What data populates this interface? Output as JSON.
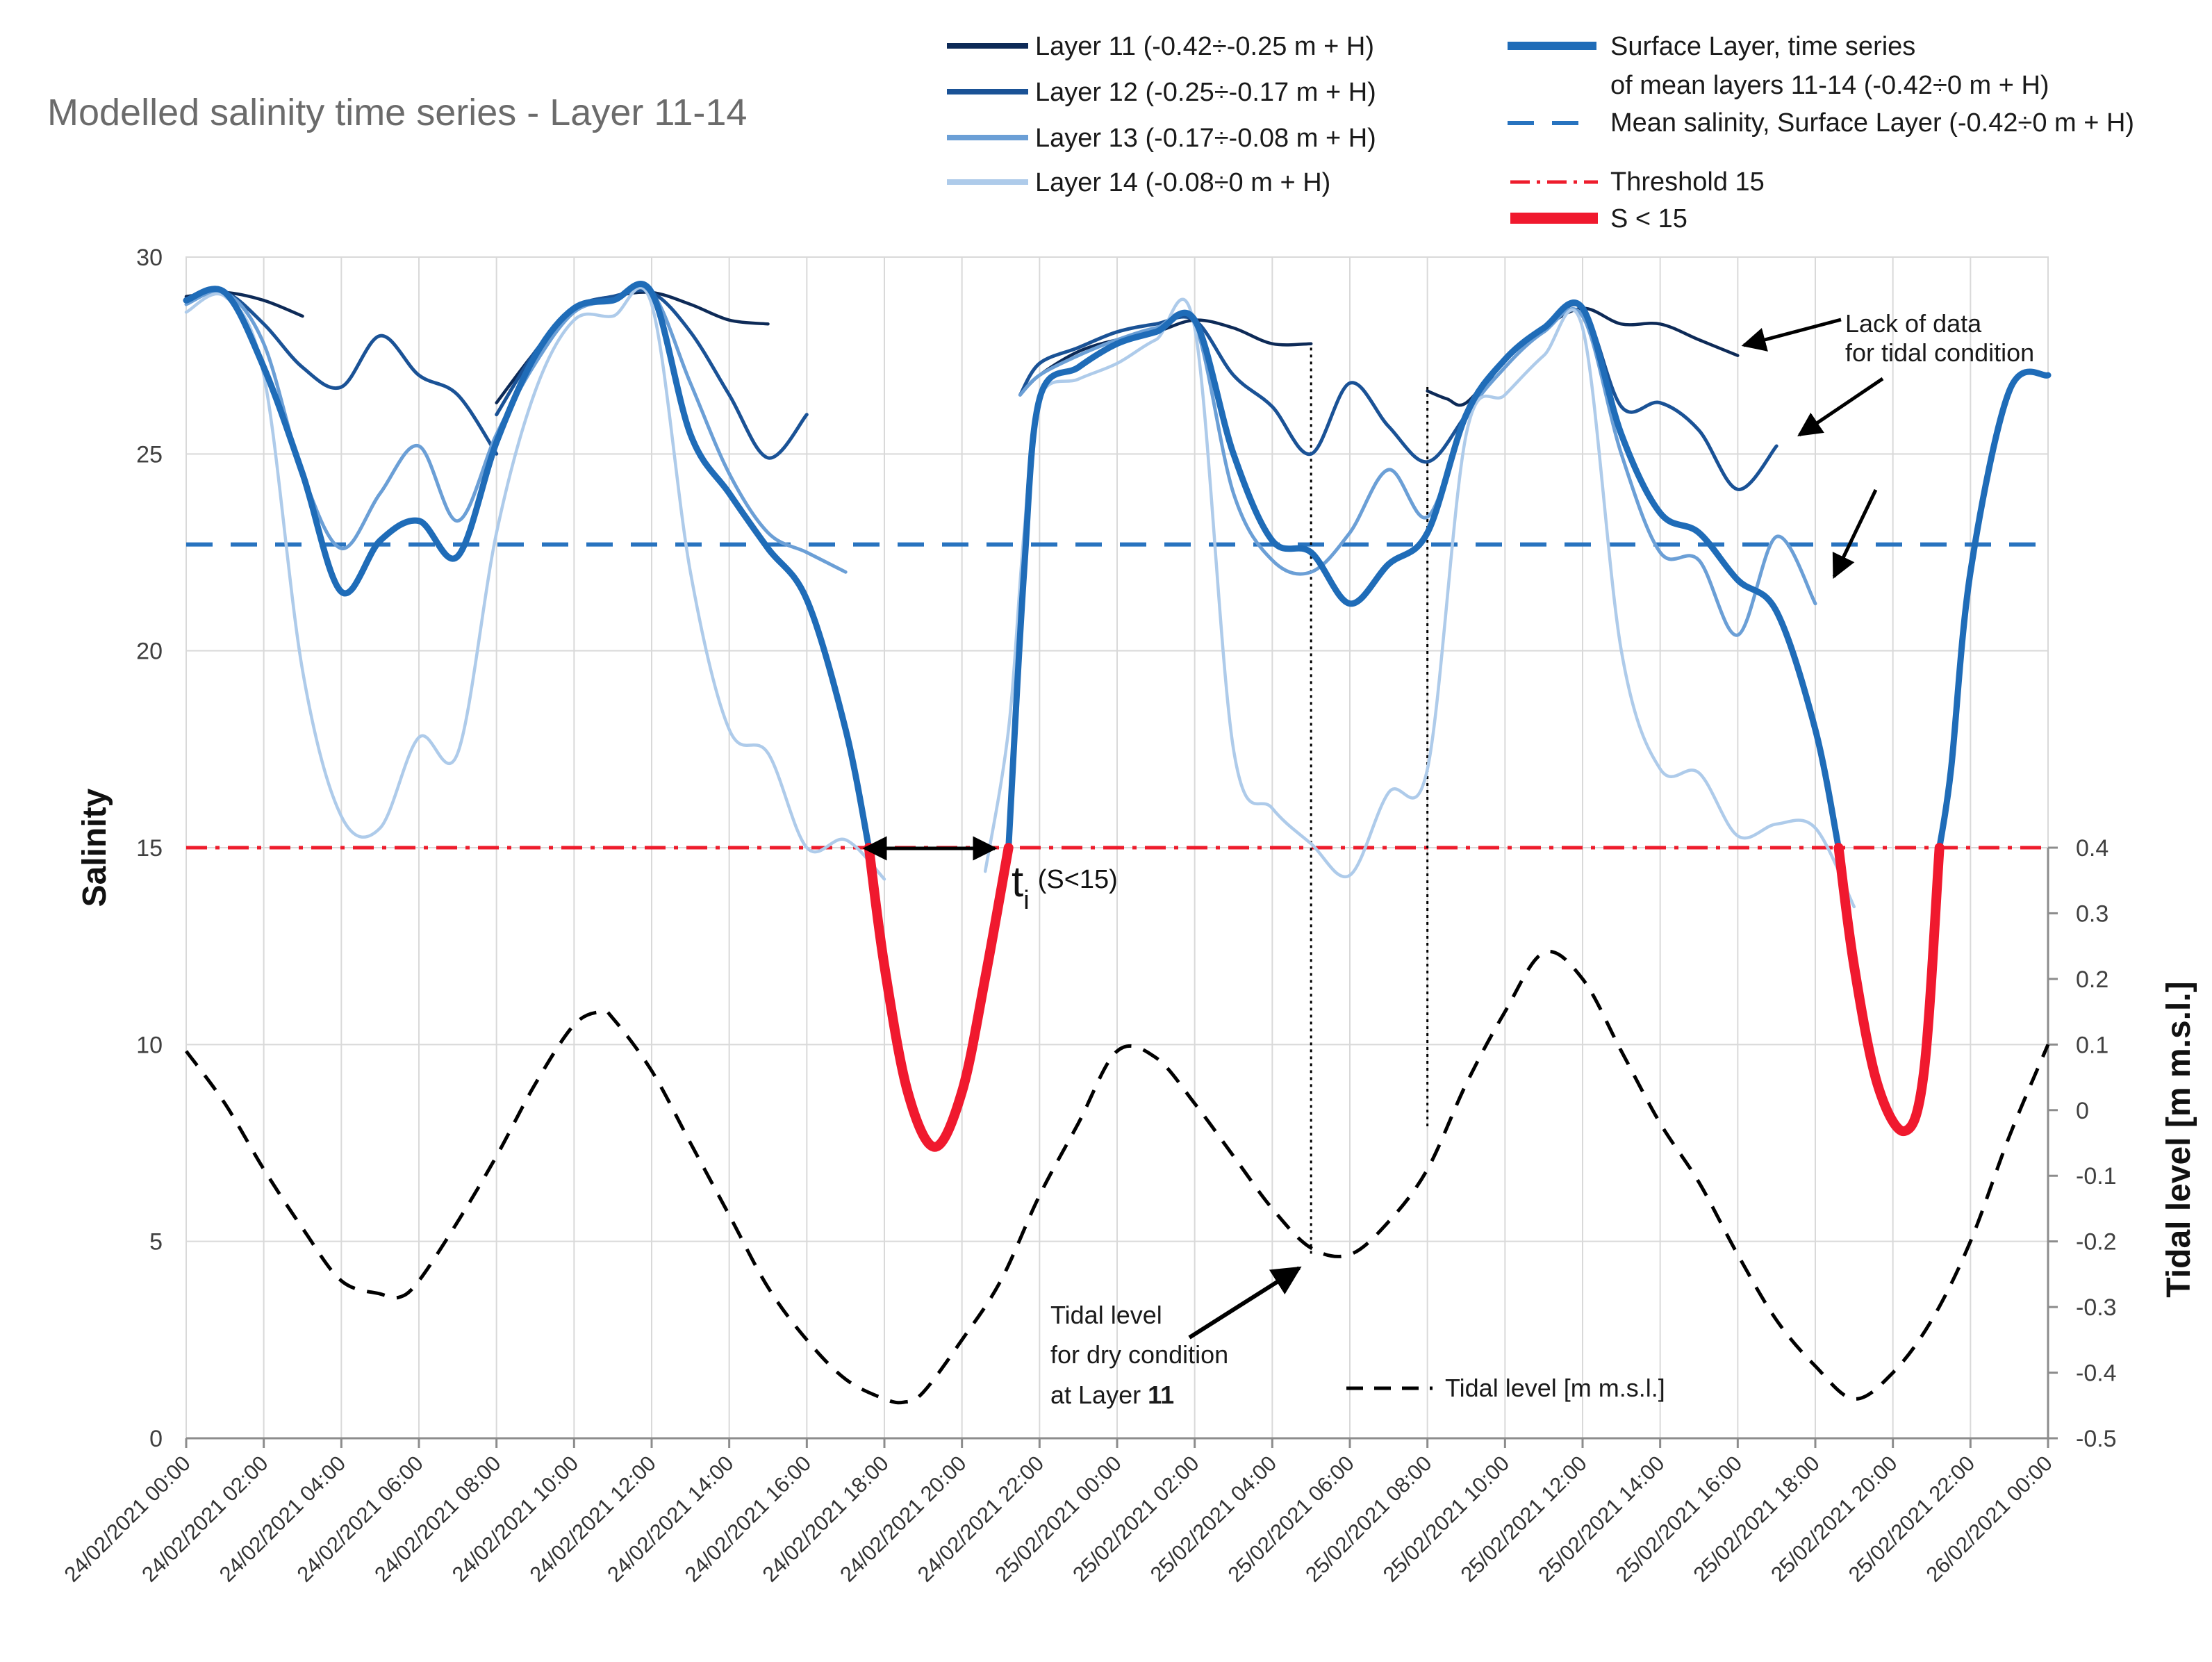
{
  "chart_data": {
    "type": "line",
    "title": "Modelled salinity time series - Layer 11-14",
    "ylabel": "Salinity",
    "y2label": "Tidal level [m m.s.l.]",
    "ylim": [
      0,
      30
    ],
    "y2lim": [
      -0.5,
      0.4
    ],
    "yticks": [
      "0",
      "5",
      "10",
      "15",
      "20",
      "25",
      "30"
    ],
    "y2ticks": [
      "-0.5",
      "-0.4",
      "-0.3",
      "-0.2",
      "-0.1",
      "0",
      "0.1",
      "0.2",
      "0.3",
      "0.4"
    ],
    "x_unit": "hours since 24/02/2021 00:00",
    "xlim": [
      0,
      48
    ],
    "xtick_labels": [
      "24/02/2021 00:00",
      "24/02/2021 02:00",
      "24/02/2021 04:00",
      "24/02/2021 06:00",
      "24/02/2021 08:00",
      "24/02/2021 10:00",
      "24/02/2021 12:00",
      "24/02/2021 14:00",
      "24/02/2021 16:00",
      "24/02/2021 18:00",
      "24/02/2021 20:00",
      "24/02/2021 22:00",
      "25/02/2021 00:00",
      "25/02/2021 02:00",
      "25/02/2021 04:00",
      "25/02/2021 06:00",
      "25/02/2021 08:00",
      "25/02/2021 10:00",
      "25/02/2021 12:00",
      "25/02/2021 14:00",
      "25/02/2021 16:00",
      "25/02/2021 18:00",
      "25/02/2021 20:00",
      "25/02/2021 22:00",
      "26/02/2021 00:00"
    ],
    "legend": {
      "layer11": "Layer 11 (-0.42÷-0.25 m + H)",
      "layer12": "Layer 12 (-0.25÷-0.17 m + H)",
      "layer13": "Layer 13 (-0.17÷-0.08 m + H)",
      "layer14": "Layer 14 (-0.08÷0 m + H)",
      "surface_line1": "Surface Layer, time series",
      "surface_line2": "of mean layers 11-14 (-0.42÷0 m + H)",
      "mean": "Mean salinity, Surface Layer (-0.42÷0 m + H)",
      "threshold": "Threshold 15",
      "below": "S < 15",
      "tidal": "Tidal level [m m.s.l.]"
    },
    "colors": {
      "layer11": "#0d2a57",
      "layer12": "#1a5296",
      "layer13": "#6b9fd6",
      "layer14": "#aecbea",
      "surface": "#1f6cb8",
      "mean": "#2873bf",
      "threshold": "#ee1c2c",
      "below": "#f0192e",
      "tidal": "#000000",
      "grid": "#d9d9d9"
    },
    "mean_salinity": 22.7,
    "threshold": 15,
    "series": [
      {
        "name": "Layer 11",
        "key": "layer11",
        "width": 4.5,
        "segments": [
          [
            [
              0,
              29
            ],
            [
              1,
              29.1
            ],
            [
              2,
              28.9
            ],
            [
              3,
              28.5
            ]
          ],
          [
            [
              8,
              26.3
            ],
            [
              9,
              27.6
            ],
            [
              10,
              28.7
            ],
            [
              11,
              29
            ],
            [
              12,
              29.1
            ],
            [
              13,
              28.8
            ],
            [
              14,
              28.4
            ],
            [
              15,
              28.3
            ]
          ],
          [
            [
              21.5,
              26.5
            ],
            [
              22,
              27
            ],
            [
              23,
              27.6
            ],
            [
              24,
              27.9
            ],
            [
              25,
              28.1
            ],
            [
              26,
              28.4
            ],
            [
              27,
              28.2
            ],
            [
              28,
              27.8
            ],
            [
              29,
              27.8
            ]
          ],
          [
            [
              32,
              26.6
            ],
            [
              32.5,
              26.4
            ],
            [
              33,
              26.3
            ],
            [
              34,
              27.4
            ],
            [
              35,
              28.2
            ],
            [
              36,
              28.7
            ],
            [
              37,
              28.3
            ],
            [
              38,
              28.3
            ],
            [
              39,
              27.9
            ],
            [
              40,
              27.5
            ]
          ]
        ]
      },
      {
        "name": "Layer 12",
        "key": "layer12",
        "width": 5,
        "segments": [
          [
            [
              0,
              28.9
            ],
            [
              1,
              29.1
            ],
            [
              2,
              28.3
            ],
            [
              3,
              27.2
            ],
            [
              4,
              26.7
            ],
            [
              5,
              28
            ],
            [
              6,
              27
            ],
            [
              7,
              26.5
            ],
            [
              8,
              25
            ]
          ],
          [
            [
              8,
              26
            ],
            [
              9,
              27.6
            ],
            [
              10,
              28.7
            ],
            [
              11,
              29
            ],
            [
              12,
              29.1
            ],
            [
              13,
              28.1
            ],
            [
              14,
              26.5
            ],
            [
              15,
              24.9
            ],
            [
              16,
              26
            ]
          ],
          [
            [
              21.5,
              26.5
            ],
            [
              22,
              27.3
            ],
            [
              23,
              27.7
            ],
            [
              24,
              28.1
            ],
            [
              25,
              28.3
            ],
            [
              26,
              28.4
            ],
            [
              27,
              27
            ],
            [
              28,
              26.2
            ],
            [
              29,
              25
            ],
            [
              30,
              26.8
            ],
            [
              31,
              25.7
            ],
            [
              32,
              24.8
            ],
            [
              33,
              26
            ],
            [
              34,
              27.4
            ],
            [
              35,
              28.2
            ],
            [
              36,
              28.7
            ],
            [
              37,
              26.2
            ],
            [
              38,
              26.3
            ],
            [
              39,
              25.6
            ],
            [
              40,
              24.1
            ],
            [
              41,
              25.2
            ]
          ]
        ]
      },
      {
        "name": "Layer 13",
        "key": "layer13",
        "width": 5,
        "segments": [
          [
            [
              0,
              28.8
            ],
            [
              1,
              29.1
            ],
            [
              2,
              27.8
            ],
            [
              3,
              24.5
            ],
            [
              4,
              22.6
            ],
            [
              5,
              24
            ],
            [
              6,
              25.2
            ],
            [
              7,
              23.3
            ],
            [
              8,
              25.5
            ],
            [
              9,
              27.3
            ],
            [
              10,
              28.6
            ],
            [
              11,
              28.9
            ],
            [
              12,
              29.1
            ],
            [
              13,
              26.8
            ],
            [
              14,
              24.5
            ],
            [
              15,
              23
            ],
            [
              16,
              22.5
            ],
            [
              17,
              22
            ]
          ],
          [
            [
              21.5,
              26.5
            ],
            [
              22,
              27
            ],
            [
              23,
              27.5
            ],
            [
              24,
              27.9
            ],
            [
              25,
              28.2
            ],
            [
              26,
              28.3
            ],
            [
              27,
              24
            ],
            [
              28,
              22.3
            ],
            [
              29,
              22
            ],
            [
              30,
              23
            ],
            [
              31,
              24.6
            ],
            [
              32,
              23.4
            ],
            [
              33,
              25.9
            ],
            [
              34,
              27.2
            ],
            [
              35,
              28.1
            ],
            [
              36,
              28.5
            ],
            [
              37,
              25
            ],
            [
              38,
              22.5
            ],
            [
              39,
              22.3
            ],
            [
              40,
              20.4
            ],
            [
              41,
              22.9
            ],
            [
              42,
              21.2
            ]
          ]
        ]
      },
      {
        "name": "Layer 14",
        "key": "layer14",
        "width": 4.5,
        "segments": [
          [
            [
              0,
              28.6
            ],
            [
              1,
              29
            ],
            [
              2,
              27
            ],
            [
              3,
              19.5
            ],
            [
              4,
              15.8
            ],
            [
              5,
              15.5
            ],
            [
              6,
              17.8
            ],
            [
              7,
              17.4
            ],
            [
              8,
              23
            ],
            [
              9,
              26.6
            ],
            [
              10,
              28.4
            ],
            [
              11,
              28.5
            ],
            [
              12,
              28.8
            ],
            [
              13,
              22
            ],
            [
              14,
              18
            ],
            [
              15,
              17.4
            ],
            [
              16,
              15
            ],
            [
              17,
              15.2
            ],
            [
              18,
              14.2
            ]
          ],
          [
            [
              20.6,
              14.4
            ],
            [
              21.2,
              18
            ],
            [
              21.6,
              23
            ],
            [
              22,
              26.4
            ],
            [
              23,
              26.9
            ],
            [
              24,
              27.3
            ],
            [
              25,
              27.9
            ],
            [
              26,
              28.2
            ],
            [
              27,
              17.5
            ],
            [
              28,
              16
            ],
            [
              29,
              15.1
            ],
            [
              30,
              14.3
            ],
            [
              31,
              16.4
            ],
            [
              32,
              17
            ],
            [
              33,
              25.5
            ],
            [
              34,
              26.5
            ],
            [
              35,
              27.5
            ],
            [
              36,
              28.2
            ],
            [
              37,
              20
            ],
            [
              38,
              17
            ],
            [
              39,
              16.9
            ],
            [
              40,
              15.3
            ],
            [
              41,
              15.6
            ],
            [
              42,
              15.5
            ],
            [
              43,
              13.5
            ]
          ]
        ]
      },
      {
        "name": "Surface Layer",
        "key": "surface",
        "width": 9,
        "segments": [
          [
            [
              0,
              28.9
            ],
            [
              1,
              29.1
            ],
            [
              2,
              27.2
            ],
            [
              3,
              24.5
            ],
            [
              4,
              21.5
            ],
            [
              5,
              22.8
            ],
            [
              6,
              23.3
            ],
            [
              7,
              22.4
            ],
            [
              8,
              25.3
            ],
            [
              9,
              27.5
            ],
            [
              10,
              28.7
            ],
            [
              11,
              28.9
            ],
            [
              12,
              29.1
            ],
            [
              13,
              25.5
            ],
            [
              14,
              24
            ],
            [
              15,
              22.6
            ],
            [
              16,
              21.3
            ],
            [
              17,
              18
            ],
            [
              17.6,
              15
            ]
          ],
          [
            [
              21.2,
              15
            ],
            [
              21.6,
              22
            ],
            [
              22,
              26.4
            ],
            [
              23,
              27.2
            ],
            [
              24,
              27.8
            ],
            [
              25,
              28.1
            ],
            [
              26,
              28.4
            ],
            [
              27,
              25
            ],
            [
              28,
              22.8
            ],
            [
              29,
              22.5
            ],
            [
              30,
              21.2
            ],
            [
              31,
              22.2
            ],
            [
              32,
              23
            ],
            [
              33,
              26
            ],
            [
              34,
              27.4
            ],
            [
              35,
              28.2
            ],
            [
              36,
              28.7
            ],
            [
              37,
              25.5
            ],
            [
              38,
              23.5
            ],
            [
              39,
              23
            ],
            [
              40,
              21.8
            ],
            [
              41,
              21
            ],
            [
              42,
              18
            ],
            [
              42.6,
              15
            ]
          ],
          [
            [
              45.2,
              15
            ],
            [
              45.5,
              17
            ],
            [
              46,
              22
            ],
            [
              47,
              26.6
            ],
            [
              48,
              27
            ]
          ]
        ]
      },
      {
        "name": "S < 15",
        "key": "below",
        "width": 14,
        "segments": [
          [
            [
              17.6,
              15
            ],
            [
              18,
              12
            ],
            [
              18.6,
              8.8
            ],
            [
              19.3,
              7.4
            ],
            [
              20,
              8.8
            ],
            [
              20.6,
              11.7
            ],
            [
              21.2,
              15
            ]
          ],
          [
            [
              42.6,
              15
            ],
            [
              43,
              12
            ],
            [
              43.6,
              9
            ],
            [
              44.3,
              7.8
            ],
            [
              44.8,
              9.3
            ],
            [
              45.2,
              15
            ]
          ]
        ]
      }
    ],
    "tidal_level": [
      [
        0,
        0.09
      ],
      [
        1,
        0.01
      ],
      [
        2,
        -0.09
      ],
      [
        3,
        -0.18
      ],
      [
        4,
        -0.26
      ],
      [
        5,
        -0.28
      ],
      [
        5.5,
        -0.285
      ],
      [
        6,
        -0.26
      ],
      [
        7,
        -0.17
      ],
      [
        8,
        -0.07
      ],
      [
        9,
        0.04
      ],
      [
        10,
        0.13
      ],
      [
        10.7,
        0.15
      ],
      [
        11,
        0.14
      ],
      [
        12,
        0.06
      ],
      [
        13,
        -0.05
      ],
      [
        14,
        -0.16
      ],
      [
        15,
        -0.27
      ],
      [
        16,
        -0.35
      ],
      [
        17,
        -0.41
      ],
      [
        18,
        -0.44
      ],
      [
        18.5,
        -0.445
      ],
      [
        19,
        -0.43
      ],
      [
        20,
        -0.35
      ],
      [
        21,
        -0.26
      ],
      [
        22,
        -0.13
      ],
      [
        23,
        -0.02
      ],
      [
        24,
        0.09
      ],
      [
        25,
        0.08
      ],
      [
        26,
        0.01
      ],
      [
        27,
        -0.07
      ],
      [
        28,
        -0.15
      ],
      [
        29,
        -0.21
      ],
      [
        30,
        -0.22
      ],
      [
        31,
        -0.17
      ],
      [
        32,
        -0.09
      ],
      [
        33,
        0.04
      ],
      [
        34,
        0.15
      ],
      [
        35,
        0.24
      ],
      [
        36,
        0.2
      ],
      [
        37,
        0.09
      ],
      [
        38,
        -0.02
      ],
      [
        39,
        -0.11
      ],
      [
        40,
        -0.22
      ],
      [
        41,
        -0.32
      ],
      [
        42,
        -0.39
      ],
      [
        43,
        -0.44
      ],
      [
        44,
        -0.4
      ],
      [
        45,
        -0.32
      ],
      [
        46,
        -0.2
      ],
      [
        47,
        -0.04
      ],
      [
        48,
        0.1
      ]
    ],
    "dry_condition_markers_x": [
      29,
      32
    ],
    "annotations": {
      "lack_of_data_line1": "Lack of data",
      "lack_of_data_line2": "for tidal condition",
      "tidal_dry_line1": "Tidal level",
      "tidal_dry_line2": "for dry condition",
      "tidal_dry_line3": "at Layer ",
      "tidal_dry_line3_bold": "11",
      "ti_main": "t",
      "ti_sub": "i",
      "ti_cond": "(S<15)"
    }
  }
}
